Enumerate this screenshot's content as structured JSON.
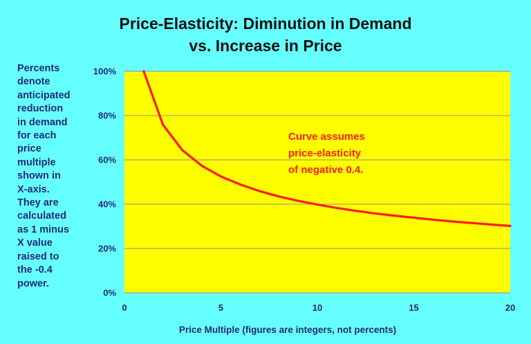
{
  "chart_data": {
    "type": "line",
    "title": [
      "Price-Elasticity: Diminution in Demand",
      "vs. Increase in Price"
    ],
    "xlabel": "Price Multiple (figures are integers, not percents)",
    "ylabel": "",
    "side_note": [
      "Percents",
      "denote",
      "anticipated",
      "reduction",
      "in demand",
      "for each",
      "price",
      "multiple",
      "shown in",
      "X-axis.",
      "They are",
      "calculated",
      "as 1 minus",
      "X value",
      "raised to",
      "the -0.4",
      "power."
    ],
    "annotation": [
      "Curve assumes",
      "price-elasticity",
      "of negative 0.4."
    ],
    "xlim": [
      0,
      20
    ],
    "ylim": [
      0,
      100
    ],
    "x_ticks": [
      0,
      5,
      10,
      15,
      20
    ],
    "x_tick_labels": [
      "0",
      "5",
      "10",
      "15",
      "20"
    ],
    "y_ticks": [
      0,
      20,
      40,
      60,
      80,
      100
    ],
    "y_tick_labels": [
      "0%",
      "20%",
      "40%",
      "60%",
      "80%",
      "100%"
    ],
    "grid": "horizontal",
    "legend": "none",
    "series": [
      {
        "x": [
          1,
          2,
          3,
          4,
          5,
          6,
          7,
          8,
          9,
          10,
          11,
          12,
          13,
          14,
          15,
          16,
          17,
          18,
          19,
          20
        ],
        "values": [
          100,
          75.8,
          64.4,
          57.4,
          52.5,
          48.9,
          45.9,
          43.5,
          41.5,
          39.8,
          38.3,
          37.0,
          35.8,
          34.8,
          33.9,
          33.0,
          32.2,
          31.5,
          30.8,
          30.2
        ],
        "color": "#ff1a1a"
      }
    ],
    "colors": {
      "background": "#66ffff",
      "plot_area": "#ffff00",
      "line": "#ff1a1a",
      "text": "#1f2a78",
      "annotation": "#ff1a1a"
    }
  }
}
